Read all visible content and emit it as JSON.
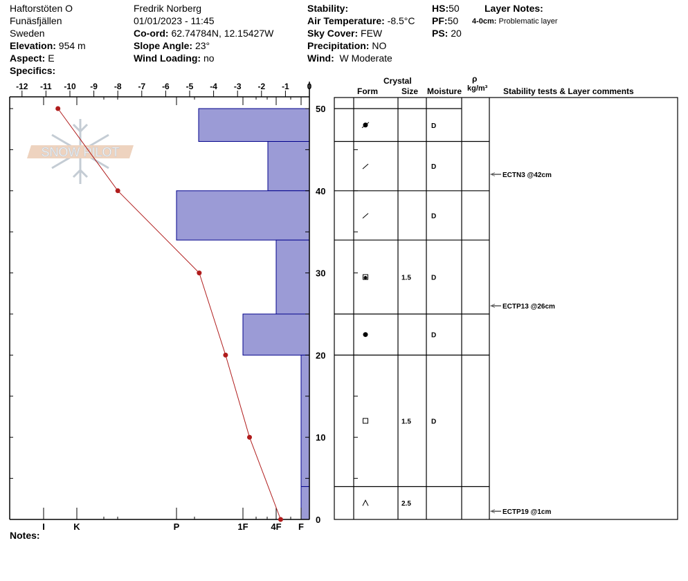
{
  "header": {
    "site": "Haftorstöten O",
    "area": "Funäsfjällen",
    "country": "Sweden",
    "elevation_label": "Elevation:",
    "elevation": "954 m",
    "aspect_label": "Aspect:",
    "aspect": "E",
    "specifics_label": "Specifics:",
    "observer": "Fredrik Norberg",
    "datetime": "01/01/2023 - 11:45",
    "coord_label": "Co-ord:",
    "coord": "62.74784N, 12.15427W",
    "slope_label": "Slope Angle:",
    "slope": "23°",
    "wind_loading_label": "Wind Loading:",
    "wind_loading": "no",
    "stability_label": "Stability:",
    "air_temp_label": "Air Temperature:",
    "air_temp": "-8.5°C",
    "sky_label": "Sky Cover:",
    "sky": "FEW",
    "precip_label": "Precipitation:",
    "precip": "NO",
    "wind_label": "Wind:",
    "wind": "W Moderate",
    "hs_label": "HS:",
    "hs": "50",
    "pf_label": "PF:",
    "pf": "50",
    "ps_label": "PS:",
    "ps": "20",
    "layer_notes_label": "Layer Notes:",
    "layer_note_range": "4-0cm:",
    "layer_note_text": "Problematic layer"
  },
  "notes_label": "Notes:",
  "logo_text": "SNOW PILOT",
  "table_headers": {
    "crystal": "Crystal",
    "form": "Form",
    "size": "Size",
    "moisture": "Moisture",
    "rho": "ρ",
    "density_unit": "kg/m³",
    "comments": "Stability tests & Layer comments"
  },
  "colors": {
    "hardness_fill": "#9b9bd6",
    "hardness_stroke": "#00008b",
    "temp_line": "#b01c1c"
  },
  "chart_data": {
    "type": "profile",
    "temp_axis": {
      "ticks": [
        -12,
        -11,
        -10,
        -9,
        -8,
        -7,
        -6,
        -5,
        -4,
        -3,
        -2,
        -1,
        0
      ],
      "labels": [
        "-12",
        "-11",
        "-10",
        "-9",
        "-8",
        "-7",
        "-6",
        "-5",
        "-4",
        "-3",
        "-2",
        "-1",
        "0"
      ],
      "range": [
        -12,
        0
      ]
    },
    "depth_axis": {
      "ticks": [
        0,
        10,
        20,
        30,
        40,
        50
      ],
      "labels": [
        "0",
        "10",
        "20",
        "30",
        "40",
        "50"
      ],
      "range": [
        0,
        50
      ]
    },
    "hardness_axis": {
      "labels": [
        "I",
        "K",
        "P",
        "1F",
        "4F",
        "F"
      ]
    },
    "temperature_profile": [
      {
        "depth": 50,
        "temp": -10.5
      },
      {
        "depth": 40,
        "temp": -8.0
      },
      {
        "depth": 30,
        "temp": -4.6
      },
      {
        "depth": 20,
        "temp": -3.5
      },
      {
        "depth": 10,
        "temp": -2.5
      },
      {
        "depth": 0,
        "temp": -1.2
      }
    ],
    "layers": [
      {
        "top": 50,
        "bottom": 46,
        "hardness": "P-",
        "form": "melt-freeze-crust",
        "size": "",
        "moisture": "D"
      },
      {
        "top": 46,
        "bottom": 40,
        "hardness": "4F+",
        "form": "decomposing-fragments",
        "size": "",
        "moisture": "D"
      },
      {
        "top": 40,
        "bottom": 34,
        "hardness": "P",
        "form": "decomposing-fragments",
        "size": "",
        "moisture": "D"
      },
      {
        "top": 34,
        "bottom": 25,
        "hardness": "4F",
        "form": "rounded-faceted",
        "size": "1.5",
        "moisture": "D"
      },
      {
        "top": 25,
        "bottom": 20,
        "hardness": "1F",
        "form": "rounded-grains",
        "size": "",
        "moisture": "D"
      },
      {
        "top": 20,
        "bottom": 4,
        "hardness": "F",
        "form": "faceted-crystals",
        "size": "1.5",
        "moisture": "D"
      },
      {
        "top": 4,
        "bottom": 0,
        "hardness": "F",
        "form": "depth-hoar",
        "size": "2.5",
        "moisture": ""
      }
    ],
    "stability_tests": [
      {
        "depth": 42,
        "text": "ECTN3 @42cm"
      },
      {
        "depth": 26,
        "text": "ECTP13 @26cm"
      },
      {
        "depth": 1,
        "text": "ECTP19 @1cm"
      }
    ]
  }
}
